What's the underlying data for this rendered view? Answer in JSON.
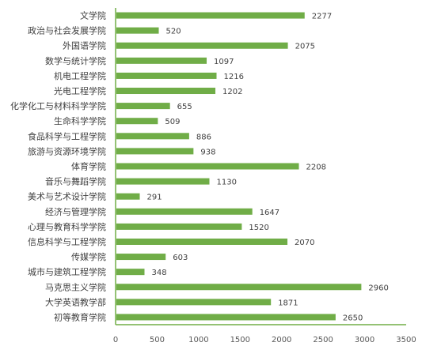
{
  "chart_data": {
    "type": "bar",
    "orientation": "horizontal",
    "title": "",
    "xlabel": "",
    "ylabel": "",
    "categories": [
      "文学院",
      "政治与社会发展学院",
      "外国语学院",
      "数学与统计学院",
      "机电工程学院",
      "光电工程学院",
      "化学化工与材料科学学院",
      "生命科学学院",
      "食品科学与工程学院",
      "旅游与资源环境学院",
      "体育学院",
      "音乐与舞蹈学院",
      "美术与艺术设计学院",
      "经济与管理学院",
      "心理与教育科学学院",
      "信息科学与工程学院",
      "传媒学院",
      "城市与建筑工程学院",
      "马克思主义学院",
      "大学英语教学部",
      "初等教育学院"
    ],
    "values": [
      2277,
      520,
      2075,
      1097,
      1216,
      1202,
      655,
      509,
      886,
      938,
      2208,
      1130,
      291,
      1647,
      1520,
      2070,
      603,
      348,
      2960,
      1871,
      2650
    ],
    "xlim": [
      0,
      3500
    ],
    "xticks": [
      0,
      500,
      1000,
      1500,
      2000,
      2500,
      3000,
      3500
    ],
    "grid": false,
    "legend": "none",
    "bar_color": "#70AD47",
    "axis_color": "#70AD47"
  }
}
